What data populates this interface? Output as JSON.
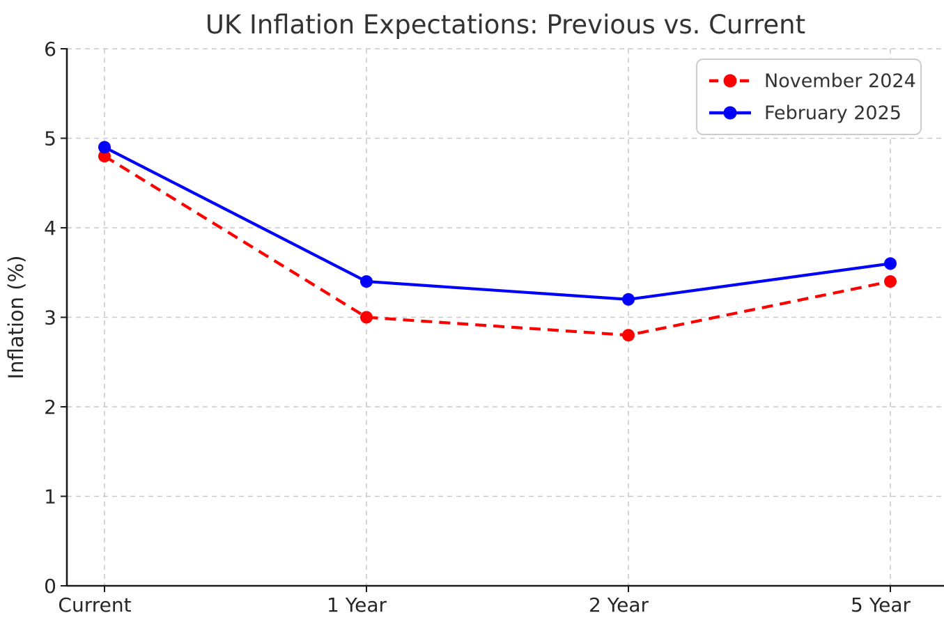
{
  "chart_data": {
    "type": "line",
    "title": "UK Inflation Expectations: Previous vs. Current",
    "ylabel": "Inflation (%)",
    "xlabel": "",
    "categories": [
      "Current",
      "1 Year",
      "2 Year",
      "5 Year"
    ],
    "yticks": [
      0,
      1,
      2,
      3,
      4,
      5,
      6
    ],
    "ylim": [
      0,
      6
    ],
    "grid": true,
    "legend_position": "upper right",
    "series": [
      {
        "name": "November 2024",
        "color": "#ff0000",
        "line_style": "dashed",
        "marker": "circle",
        "values": [
          4.8,
          3.0,
          2.8,
          3.4
        ]
      },
      {
        "name": "February 2025",
        "color": "#0000ff",
        "line_style": "solid",
        "marker": "circle",
        "values": [
          4.9,
          3.4,
          3.2,
          3.6
        ]
      }
    ],
    "colors": {
      "grid": "#c9c9c9",
      "axis": "#1a1a1a",
      "text": "#262626"
    }
  }
}
